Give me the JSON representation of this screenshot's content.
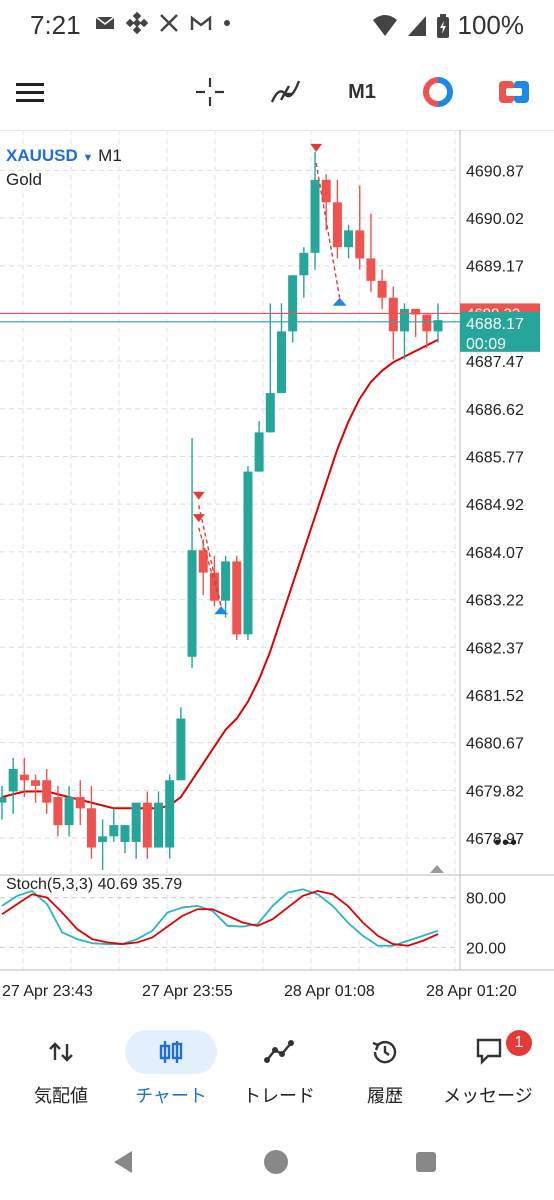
{
  "status": {
    "time": "7:21",
    "battery": "100%"
  },
  "toolbar": {
    "timeframe_label": "M1"
  },
  "chart": {
    "symbol": "XAUUSD",
    "timeframe": "M1",
    "description": "Gold",
    "price_labels": [
      "4690.87",
      "4690.02",
      "4689.17",
      "4688.32",
      "4687.47",
      "4686.62",
      "4685.77",
      "4684.92",
      "4684.07",
      "4683.22",
      "4682.37",
      "4681.52",
      "4680.67",
      "4679.82",
      "4678.97"
    ],
    "current_price": "4688.17",
    "countdown": "00:09",
    "ask_line_label": "4688.32",
    "time_labels": [
      "27 Apr 23:43",
      "27 Apr 23:55",
      "28 Apr 01:08",
      "28 Apr 01:20"
    ],
    "more_label": "•••"
  },
  "stoch": {
    "label": "Stoch(5,3,3) 40.69 35.79",
    "levels": [
      "80.00",
      "20.00"
    ]
  },
  "colors": {
    "bull": "#26a69a",
    "bear": "#ef5350",
    "ma": "#e00000",
    "ask": "#ef5350",
    "bid": "#26a69a",
    "accent": "#1f6fd9",
    "stoch_main": "#26b7c0",
    "stoch_signal": "#e00000"
  },
  "chart_data": {
    "type": "candlestick",
    "symbol": "XAUUSD",
    "ylim": [
      4678.4,
      4691.5
    ],
    "candles": [
      {
        "o": 4679.6,
        "h": 4679.9,
        "l": 4679.3,
        "c": 4679.7
      },
      {
        "o": 4679.8,
        "h": 4680.4,
        "l": 4679.4,
        "c": 4680.2
      },
      {
        "o": 4680.1,
        "h": 4680.4,
        "l": 4679.7,
        "c": 4680.0
      },
      {
        "o": 4680.0,
        "h": 4680.1,
        "l": 4679.6,
        "c": 4679.9
      },
      {
        "o": 4680.0,
        "h": 4680.2,
        "l": 4679.4,
        "c": 4679.6
      },
      {
        "o": 4679.7,
        "h": 4679.9,
        "l": 4679.0,
        "c": 4679.2
      },
      {
        "o": 4679.2,
        "h": 4679.9,
        "l": 4679.0,
        "c": 4679.7
      },
      {
        "o": 4679.7,
        "h": 4680.0,
        "l": 4679.2,
        "c": 4679.5
      },
      {
        "o": 4679.5,
        "h": 4679.9,
        "l": 4678.6,
        "c": 4678.8
      },
      {
        "o": 4678.9,
        "h": 4679.3,
        "l": 4678.4,
        "c": 4679.0
      },
      {
        "o": 4679.0,
        "h": 4679.5,
        "l": 4678.9,
        "c": 4679.2
      },
      {
        "o": 4678.9,
        "h": 4679.2,
        "l": 4678.7,
        "c": 4679.2
      },
      {
        "o": 4678.9,
        "h": 4679.6,
        "l": 4678.6,
        "c": 4679.6
      },
      {
        "o": 4679.6,
        "h": 4679.8,
        "l": 4678.6,
        "c": 4678.8
      },
      {
        "o": 4678.8,
        "h": 4679.8,
        "l": 4678.8,
        "c": 4679.6
      },
      {
        "o": 4678.8,
        "h": 4680.1,
        "l": 4678.6,
        "c": 4680.0
      },
      {
        "o": 4680.0,
        "h": 4681.3,
        "l": 4680.0,
        "c": 4681.1
      },
      {
        "o": 4682.2,
        "h": 4686.1,
        "l": 4682.0,
        "c": 4684.1
      },
      {
        "o": 4684.1,
        "h": 4684.3,
        "l": 4683.3,
        "c": 4683.7
      },
      {
        "o": 4683.7,
        "h": 4684.0,
        "l": 4683.1,
        "c": 4683.2
      },
      {
        "o": 4683.2,
        "h": 4684.0,
        "l": 4682.9,
        "c": 4683.9
      },
      {
        "o": 4683.9,
        "h": 4684.0,
        "l": 4682.5,
        "c": 4682.6
      },
      {
        "o": 4682.6,
        "h": 4685.6,
        "l": 4682.5,
        "c": 4685.5
      },
      {
        "o": 4685.5,
        "h": 4686.4,
        "l": 4685.5,
        "c": 4686.2
      },
      {
        "o": 4686.2,
        "h": 4688.5,
        "l": 4686.2,
        "c": 4686.9
      },
      {
        "o": 4686.9,
        "h": 4688.5,
        "l": 4686.9,
        "c": 4688.0
      },
      {
        "o": 4688.0,
        "h": 4689.0,
        "l": 4687.8,
        "c": 4689.0
      },
      {
        "o": 4689.0,
        "h": 4689.5,
        "l": 4688.6,
        "c": 4689.4
      },
      {
        "o": 4689.4,
        "h": 4691.2,
        "l": 4689.1,
        "c": 4690.7
      },
      {
        "o": 4690.7,
        "h": 4690.8,
        "l": 4689.8,
        "c": 4690.3
      },
      {
        "o": 4690.3,
        "h": 4690.7,
        "l": 4689.3,
        "c": 4689.5
      },
      {
        "o": 4689.5,
        "h": 4689.9,
        "l": 4689.3,
        "c": 4689.8
      },
      {
        "o": 4689.8,
        "h": 4690.6,
        "l": 4689.1,
        "c": 4689.3
      },
      {
        "o": 4689.3,
        "h": 4690.1,
        "l": 4688.7,
        "c": 4688.9
      },
      {
        "o": 4688.9,
        "h": 4689.1,
        "l": 4688.4,
        "c": 4688.6
      },
      {
        "o": 4688.6,
        "h": 4688.8,
        "l": 4687.5,
        "c": 4688.0
      },
      {
        "o": 4688.0,
        "h": 4688.5,
        "l": 4687.5,
        "c": 4688.4
      },
      {
        "o": 4688.4,
        "h": 4688.4,
        "l": 4687.9,
        "c": 4688.3
      },
      {
        "o": 4688.3,
        "h": 4688.3,
        "l": 4687.7,
        "c": 4688.0
      },
      {
        "o": 4688.0,
        "h": 4688.5,
        "l": 4687.8,
        "c": 4688.2
      }
    ],
    "ma": [
      4679.7,
      4679.75,
      4679.8,
      4679.8,
      4679.8,
      4679.75,
      4679.7,
      4679.65,
      4679.6,
      4679.55,
      4679.5,
      4679.5,
      4679.5,
      4679.5,
      4679.5,
      4679.55,
      4679.7,
      4680.0,
      4680.3,
      4680.6,
      4680.9,
      4681.1,
      4681.4,
      4681.8,
      4682.3,
      4682.9,
      4683.5,
      4684.1,
      4684.7,
      4685.3,
      4685.9,
      4686.4,
      4686.8,
      4687.1,
      4687.3,
      4687.45,
      4687.55,
      4687.65,
      4687.75,
      4687.85
    ],
    "stoch_main": [
      70,
      82,
      88,
      72,
      38,
      30,
      25,
      24,
      24,
      30,
      40,
      62,
      68,
      70,
      64,
      46,
      45,
      48,
      70,
      86,
      90,
      84,
      70,
      50,
      34,
      22,
      22,
      28,
      34,
      40
    ],
    "stoch_signal": [
      60,
      72,
      84,
      80,
      62,
      42,
      30,
      26,
      24,
      26,
      32,
      45,
      58,
      66,
      66,
      58,
      50,
      46,
      54,
      68,
      82,
      88,
      84,
      70,
      50,
      34,
      24,
      22,
      28,
      36
    ]
  }
}
